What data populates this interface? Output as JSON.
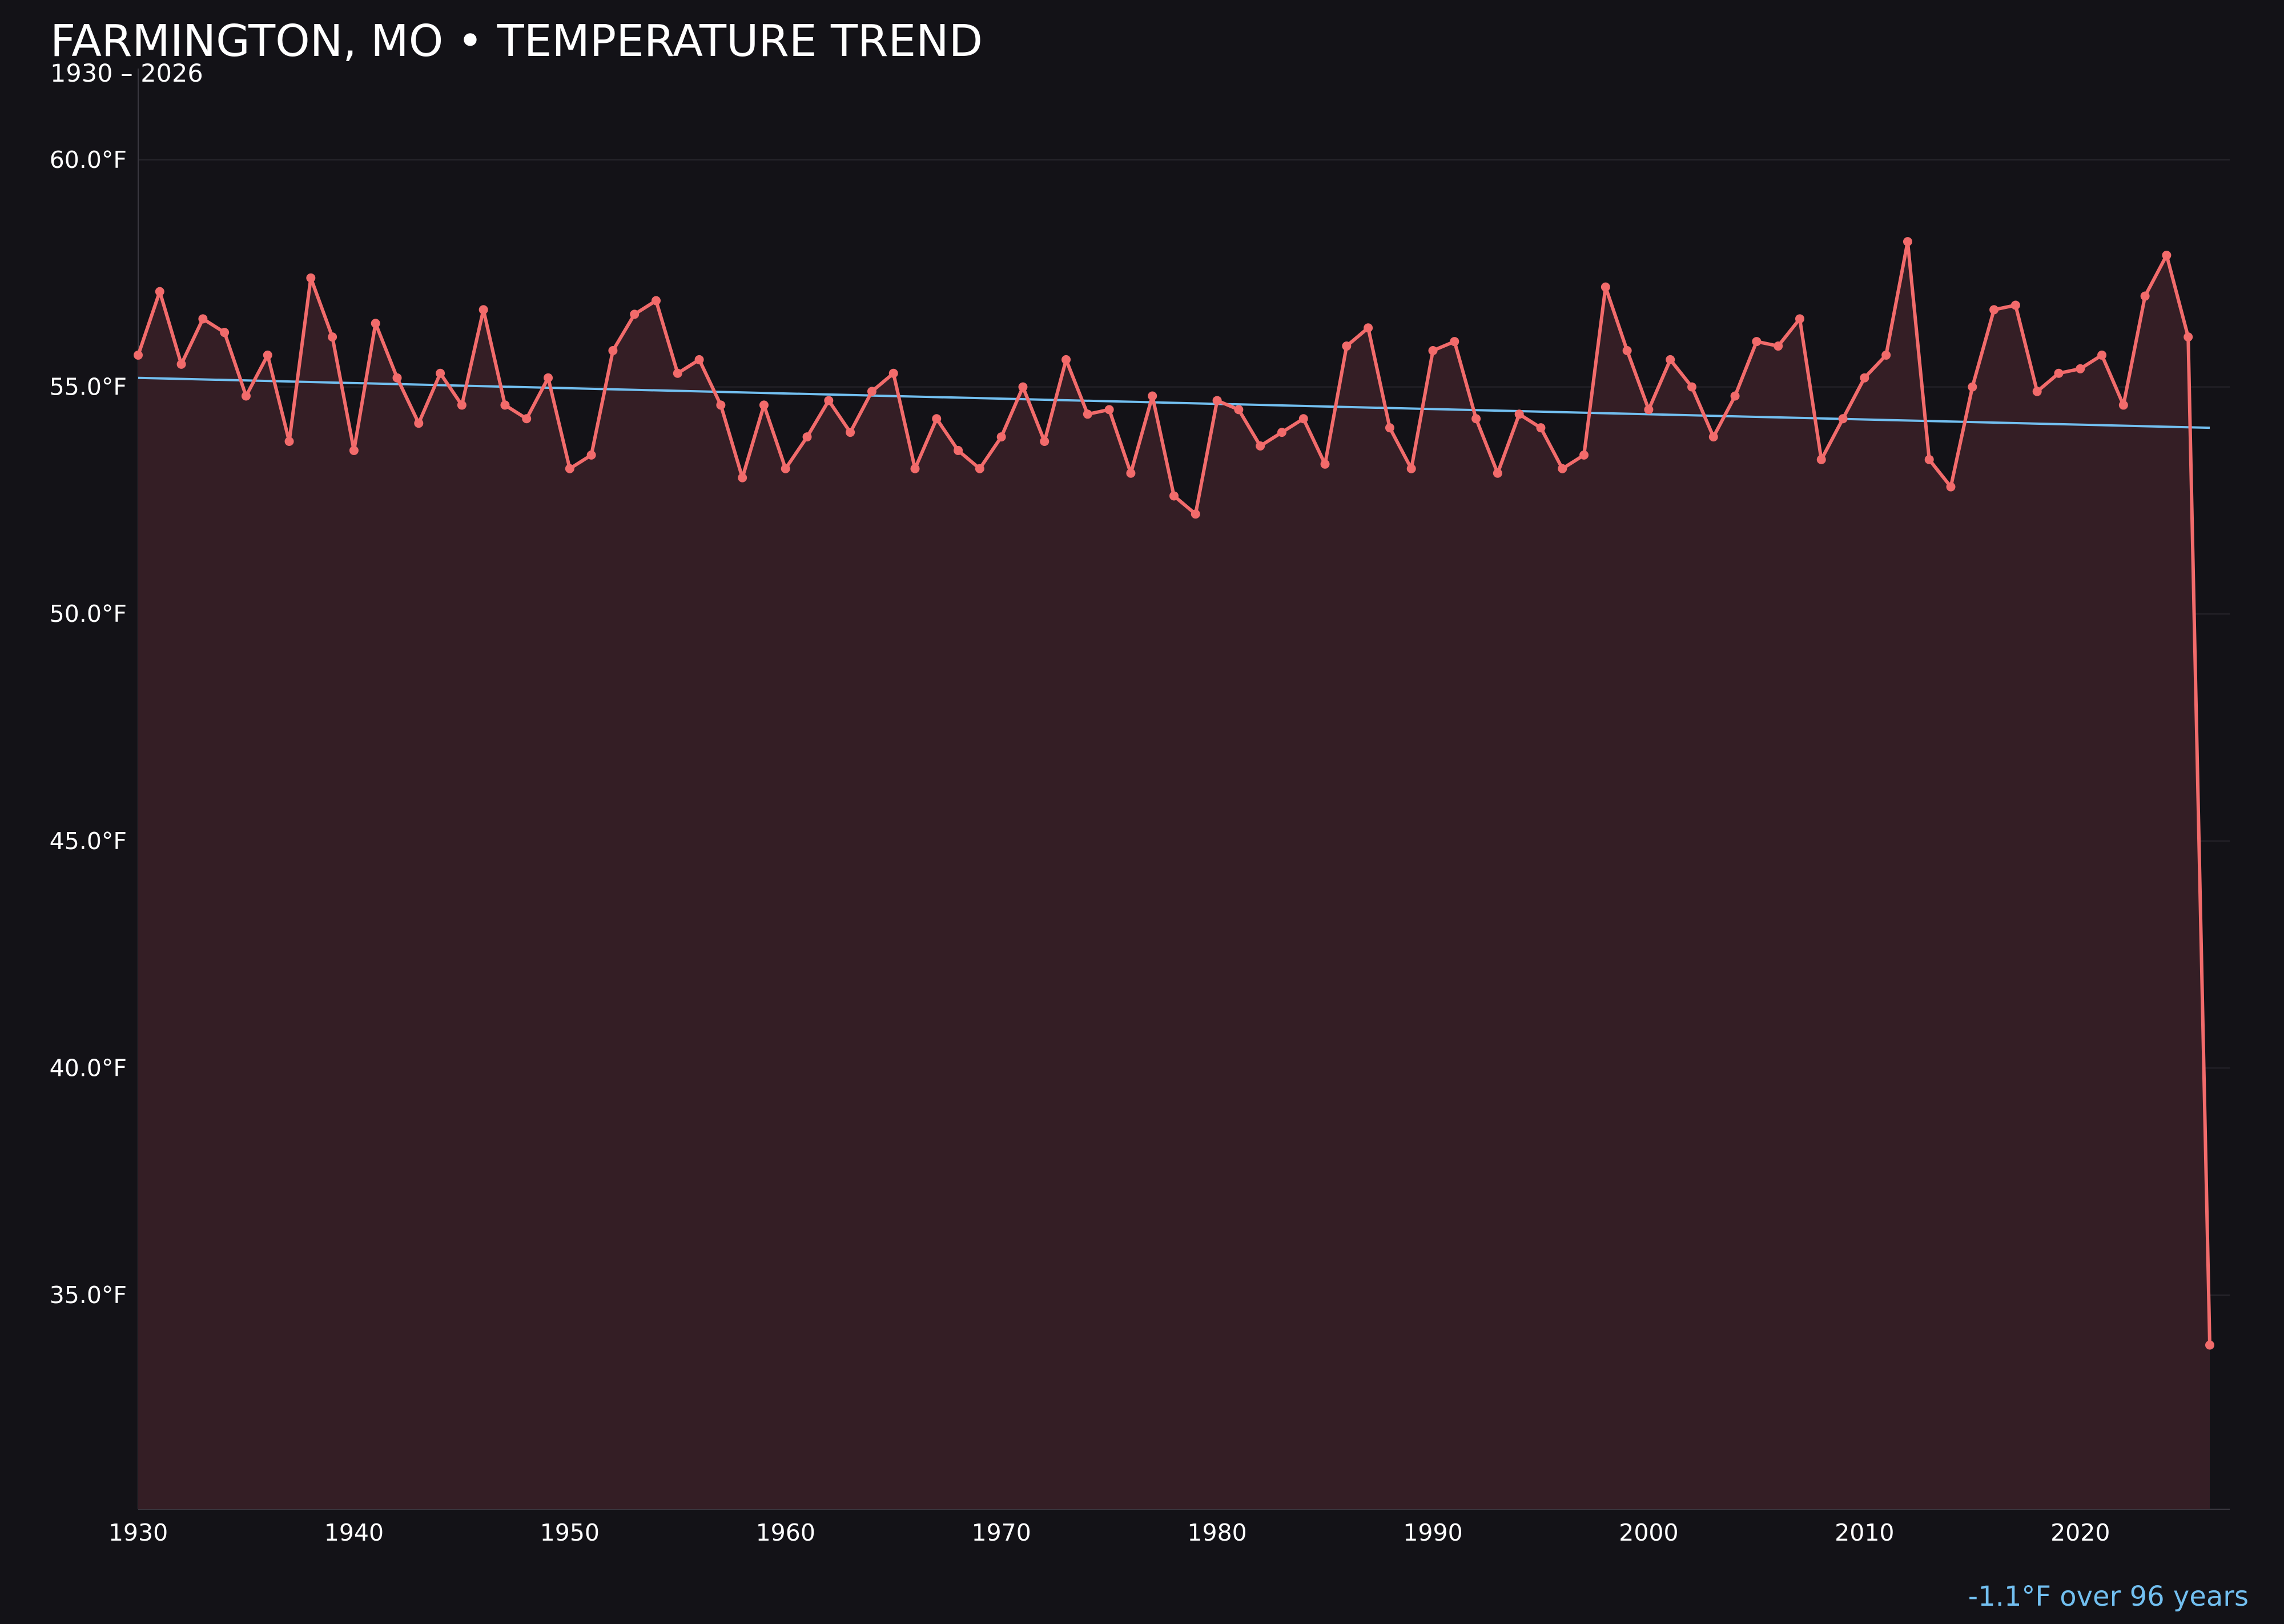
{
  "chart_data": {
    "type": "line",
    "title": "FARMINGTON, MO • TEMPERATURE TREND",
    "subtitle": "1930 – 2026",
    "xlabel": "",
    "ylabel": "",
    "xlim": [
      1930,
      2027
    ],
    "ylim": [
      30.2,
      61.5
    ],
    "grid": true,
    "x_ticks": [
      1930,
      1940,
      1950,
      1960,
      1970,
      1980,
      1990,
      2000,
      2010,
      2020
    ],
    "x_tick_labels": [
      "1930",
      "1940",
      "1950",
      "1960",
      "1970",
      "1980",
      "1990",
      "2000",
      "2010",
      "2020"
    ],
    "y_ticks": [
      35,
      40,
      45,
      50,
      55,
      60
    ],
    "y_tick_labels": [
      "35.0°F",
      "40.0°F",
      "45.0°F",
      "50.0°F",
      "55.0°F",
      "60.0°F"
    ],
    "series": [
      {
        "x": [
          1930,
          1931,
          1932,
          1933,
          1934,
          1935,
          1936,
          1937,
          1938,
          1939,
          1940,
          1941,
          1942,
          1943,
          1944,
          1945,
          1946,
          1947,
          1948,
          1949,
          1950,
          1951,
          1952,
          1953,
          1954,
          1955,
          1956,
          1957,
          1958,
          1959,
          1960,
          1961,
          1962,
          1963,
          1964,
          1965,
          1966,
          1967,
          1968,
          1969,
          1970,
          1971,
          1972,
          1973,
          1974,
          1975,
          1976,
          1977,
          1978,
          1979,
          1980,
          1981,
          1982,
          1983,
          1984,
          1985,
          1986,
          1987,
          1988,
          1989,
          1990,
          1991,
          1992,
          1993,
          1994,
          1995,
          1996,
          1997,
          1998,
          1999,
          2000,
          2001,
          2002,
          2003,
          2004,
          2005,
          2006,
          2007,
          2008,
          2009,
          2010,
          2011,
          2012,
          2013,
          2014,
          2015,
          2016,
          2017,
          2018,
          2019,
          2020,
          2021,
          2022,
          2023,
          2024,
          2025,
          2026
        ],
        "values": [
          55.7,
          57.1,
          55.5,
          56.5,
          56.2,
          54.8,
          55.7,
          53.8,
          57.4,
          56.1,
          53.6,
          56.4,
          55.2,
          54.2,
          55.3,
          54.6,
          56.7,
          54.6,
          54.3,
          55.2,
          53.2,
          53.5,
          55.8,
          56.6,
          56.9,
          55.3,
          55.6,
          54.6,
          53.0,
          54.6,
          53.2,
          53.9,
          54.7,
          54.0,
          54.9,
          55.3,
          53.2,
          54.3,
          53.6,
          53.2,
          53.9,
          55.0,
          53.8,
          55.6,
          54.4,
          54.5,
          53.1,
          54.8,
          52.6,
          52.2,
          54.7,
          54.5,
          53.7,
          54.0,
          54.3,
          53.3,
          55.9,
          56.3,
          54.1,
          53.2,
          55.8,
          56.0,
          54.3,
          53.1,
          54.4,
          54.1,
          53.2,
          53.5,
          57.2,
          55.8,
          54.5,
          55.6,
          55.0,
          53.9,
          54.8,
          56.0,
          55.9,
          56.5,
          53.4,
          54.3,
          55.2,
          55.7,
          58.2,
          53.4,
          52.8,
          55.0,
          56.7,
          56.8,
          54.9,
          55.3,
          55.4,
          55.7,
          54.6,
          57.0,
          57.9,
          56.1,
          33.9
        ],
        "color": "#f26b6b"
      }
    ],
    "trend": {
      "x": [
        1930,
        2026
      ],
      "values": [
        55.2,
        54.1
      ],
      "color": "#72bff0"
    },
    "annotation": {
      "text": "-1.1°F over 96 years",
      "color": "#72bff0"
    }
  }
}
